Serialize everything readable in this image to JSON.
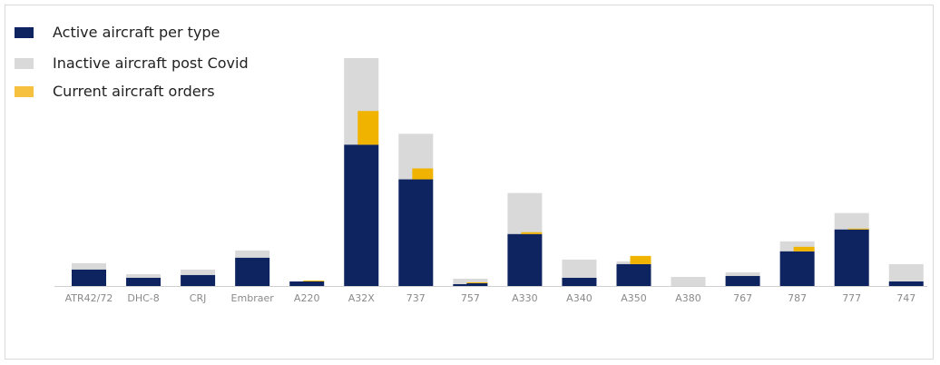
{
  "chart_data": {
    "type": "bar",
    "stacked": true,
    "title": "",
    "xlabel": "",
    "ylabel": "",
    "ylim": [
      0,
      250
    ],
    "grid": false,
    "legend_position": "top-left",
    "categories": [
      "ATR42/72",
      "DHC-8",
      "CRJ",
      "Embraer",
      "A220",
      "A32X",
      "737",
      "757",
      "A330",
      "A340",
      "A350",
      "A380",
      "767",
      "787",
      "777",
      "747"
    ],
    "series": [
      {
        "name": "Active aircraft per type",
        "color": "#0d2461",
        "stack": "left",
        "values": [
          18,
          9,
          12,
          31,
          5,
          155,
          117,
          2,
          57,
          9,
          24,
          0,
          11,
          38,
          62,
          5
        ]
      },
      {
        "name": "Inactive aircraft post Covid",
        "color": "#d9d9d9",
        "stack": "left",
        "values": [
          7,
          4,
          6,
          8,
          0,
          95,
          50,
          6,
          45,
          20,
          3,
          10,
          4,
          11,
          18,
          19
        ]
      },
      {
        "name": "Current aircraft orders",
        "color": "#f0b400",
        "stack": "right",
        "values": [
          0,
          0,
          0,
          0,
          1,
          37,
          12,
          1,
          2,
          0,
          9,
          0,
          0,
          5,
          1,
          0
        ]
      }
    ],
    "secondary_active": [
      0,
      0,
      0,
      0,
      4,
      155,
      117,
      3,
      57,
      0,
      22,
      0,
      0,
      38,
      62,
      0
    ]
  }
}
